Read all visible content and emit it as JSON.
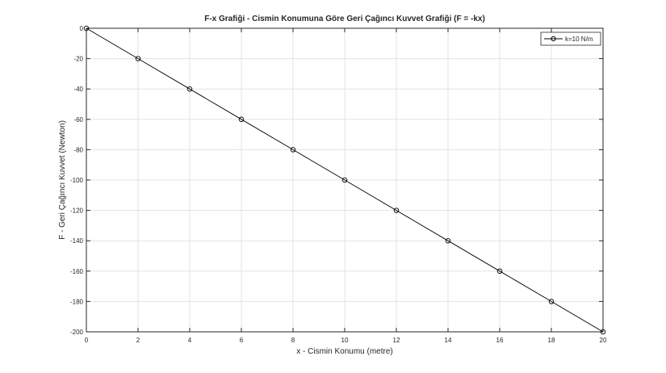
{
  "chart_data": {
    "type": "line",
    "title": "F-x Grafiği - Cismin Konumuna Göre Geri Çağıncı Kuvvet Grafiği (F = -kx)",
    "xlabel": "x - Cismin Konumu (metre)",
    "ylabel": "F - Geri Çağıncı Kuvvet (Newton)",
    "xlim": [
      0,
      20
    ],
    "ylim": [
      -200,
      0
    ],
    "xticks": [
      0,
      2,
      4,
      6,
      8,
      10,
      12,
      14,
      16,
      18,
      20
    ],
    "yticks": [
      0,
      -20,
      -40,
      -60,
      -80,
      -100,
      -120,
      -140,
      -160,
      -180,
      -200
    ],
    "grid": true,
    "legend_position": "top-right",
    "series": [
      {
        "name": "k=10 N/m",
        "color": "#000000",
        "marker": "circle",
        "x": [
          0,
          2,
          4,
          6,
          8,
          10,
          12,
          14,
          16,
          18,
          20
        ],
        "y": [
          0,
          -20,
          -40,
          -60,
          -80,
          -100,
          -120,
          -140,
          -160,
          -180,
          -200
        ]
      }
    ]
  }
}
